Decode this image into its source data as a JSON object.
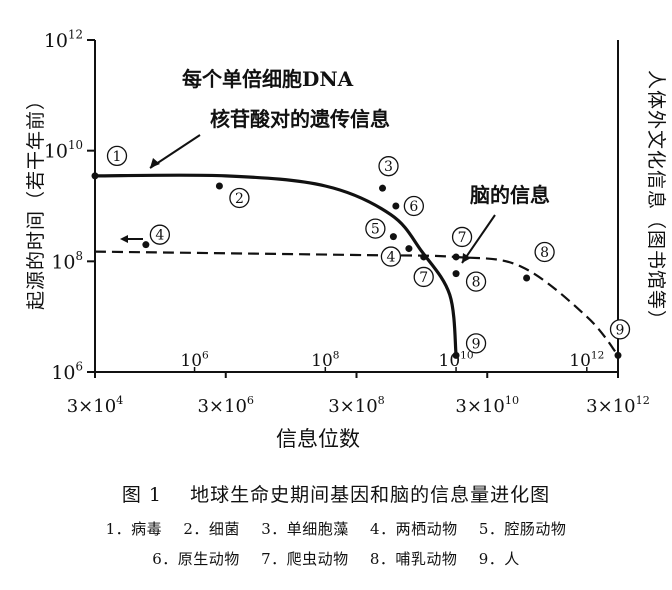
{
  "chart_data": {
    "type": "scatter",
    "x_axis": {
      "label": "信息位数",
      "log": true,
      "range": [
        30000,
        3000000000000
      ],
      "ticks": [
        {
          "value": 30000,
          "label": "3×10⁴"
        },
        {
          "value": 3000000,
          "label": "3×10⁶"
        },
        {
          "value": 300000000,
          "label": "3×10⁸"
        },
        {
          "value": 30000000000,
          "label": "3×10¹⁰"
        },
        {
          "value": 3000000000000,
          "label": "3×10¹²"
        }
      ],
      "secondary_ticks": [
        {
          "value": 1000000,
          "label": "10⁶"
        },
        {
          "value": 100000000,
          "label": "10⁸"
        },
        {
          "value": 10000000000,
          "label": "10¹⁰"
        },
        {
          "value": 1000000000000,
          "label": "10¹²"
        }
      ]
    },
    "y_axis_left": {
      "label": "起源的时间（若干年前）",
      "log": true,
      "range": [
        1000000,
        1000000000000
      ],
      "ticks": [
        {
          "value": 1000000000000,
          "label": "10¹²"
        },
        {
          "value": 10000000000,
          "label": "10¹⁰"
        },
        {
          "value": 100000000,
          "label": "10⁸"
        },
        {
          "value": 1000000,
          "label": "10⁶"
        }
      ]
    },
    "y_axis_right_label": "人体外文化信息（图书馆等）",
    "series": [
      {
        "name": "每个单倍细胞DNA核苷酸对的遗传信息",
        "style": "solid",
        "points": [
          {
            "x": 30000,
            "y": 3500000000
          },
          {
            "x": 3000000,
            "y": 3500000000
          },
          {
            "x": 100000000,
            "y": 2300000000
          },
          {
            "x": 1000000000,
            "y": 700000000
          },
          {
            "x": 3000000000,
            "y": 150000000
          },
          {
            "x": 8000000000,
            "y": 25000000
          },
          {
            "x": 10000000000,
            "y": 2000000
          }
        ]
      },
      {
        "name": "脑的信息",
        "style": "dashed",
        "points": [
          {
            "x": 30000,
            "y": 150000000
          },
          {
            "x": 300000000,
            "y": 130000000
          },
          {
            "x": 10000000000,
            "y": 120000000
          },
          {
            "x": 100000000000,
            "y": 80000000
          },
          {
            "x": 1000000000000,
            "y": 10000000
          },
          {
            "x": 3000000000000,
            "y": 2000000
          }
        ]
      }
    ],
    "points": [
      {
        "id": "1",
        "x": 30000,
        "y": 3500000000
      },
      {
        "id": "2",
        "x": 2400000,
        "y": 2300000000
      },
      {
        "id": "3",
        "x": 750000000,
        "y": 2100000000
      },
      {
        "id": "4",
        "x": 180000,
        "y": 200000000
      },
      {
        "id": "5",
        "x": 1100000000,
        "y": 280000000
      },
      {
        "id": "6",
        "x": 1200000000,
        "y": 1000000000
      },
      {
        "id": "4",
        "x": 1900000000,
        "y": 170000000
      },
      {
        "id": "7",
        "x": 3200000000,
        "y": 120000000
      },
      {
        "id": "7",
        "x": 10000000000,
        "y": 120000000
      },
      {
        "id": "8",
        "x": 10000000000,
        "y": 60000000
      },
      {
        "id": "8",
        "x": 120000000000,
        "y": 50000000
      },
      {
        "id": "9",
        "x": 10000000000,
        "y": 2000000
      },
      {
        "id": "9",
        "x": 3000000000000,
        "y": 2000000
      }
    ],
    "annotations": [
      {
        "text": "每个单倍细胞DNA"
      },
      {
        "text": "核苷酸对的遗传信息"
      },
      {
        "text": "脑的信息"
      }
    ]
  },
  "caption": {
    "figure_label": "图 1",
    "title": "地球生命史期间基因和脑的信息量进化图"
  },
  "legend": {
    "line1": [
      "1．病毒",
      "2．细菌",
      "3．单细胞藻",
      "4．两栖动物",
      "5．腔肠动物"
    ],
    "line2": [
      "6．原生动物",
      "7．爬虫动物",
      "8．哺乳动物",
      "9．人"
    ]
  }
}
